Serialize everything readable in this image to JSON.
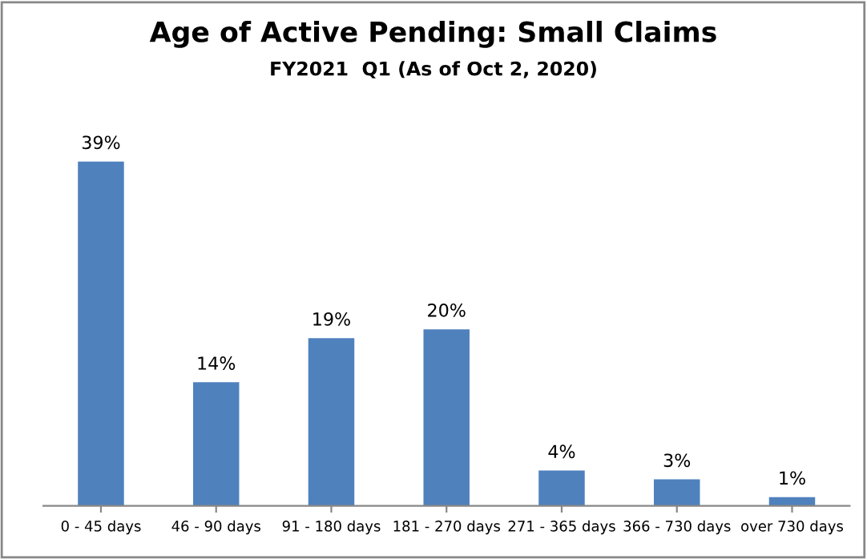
{
  "chart_data": {
    "type": "bar",
    "title": "Age of Active Pending: Small Claims",
    "subtitle": "FY2021  Q1 (As of Oct 2, 2020)",
    "categories": [
      "0 - 45 days",
      "46 - 90 days",
      "91 - 180 days",
      "181 - 270 days",
      "271 - 365 days",
      "366 - 730 days",
      "over 730 days"
    ],
    "values": [
      39,
      14,
      19,
      20,
      4,
      3,
      1
    ],
    "value_labels": [
      "39%",
      "14%",
      "19%",
      "20%",
      "4%",
      "3%",
      "1%"
    ],
    "color": "#4f81bd",
    "tick_labels": "x",
    "grid": false,
    "legend": false
  }
}
